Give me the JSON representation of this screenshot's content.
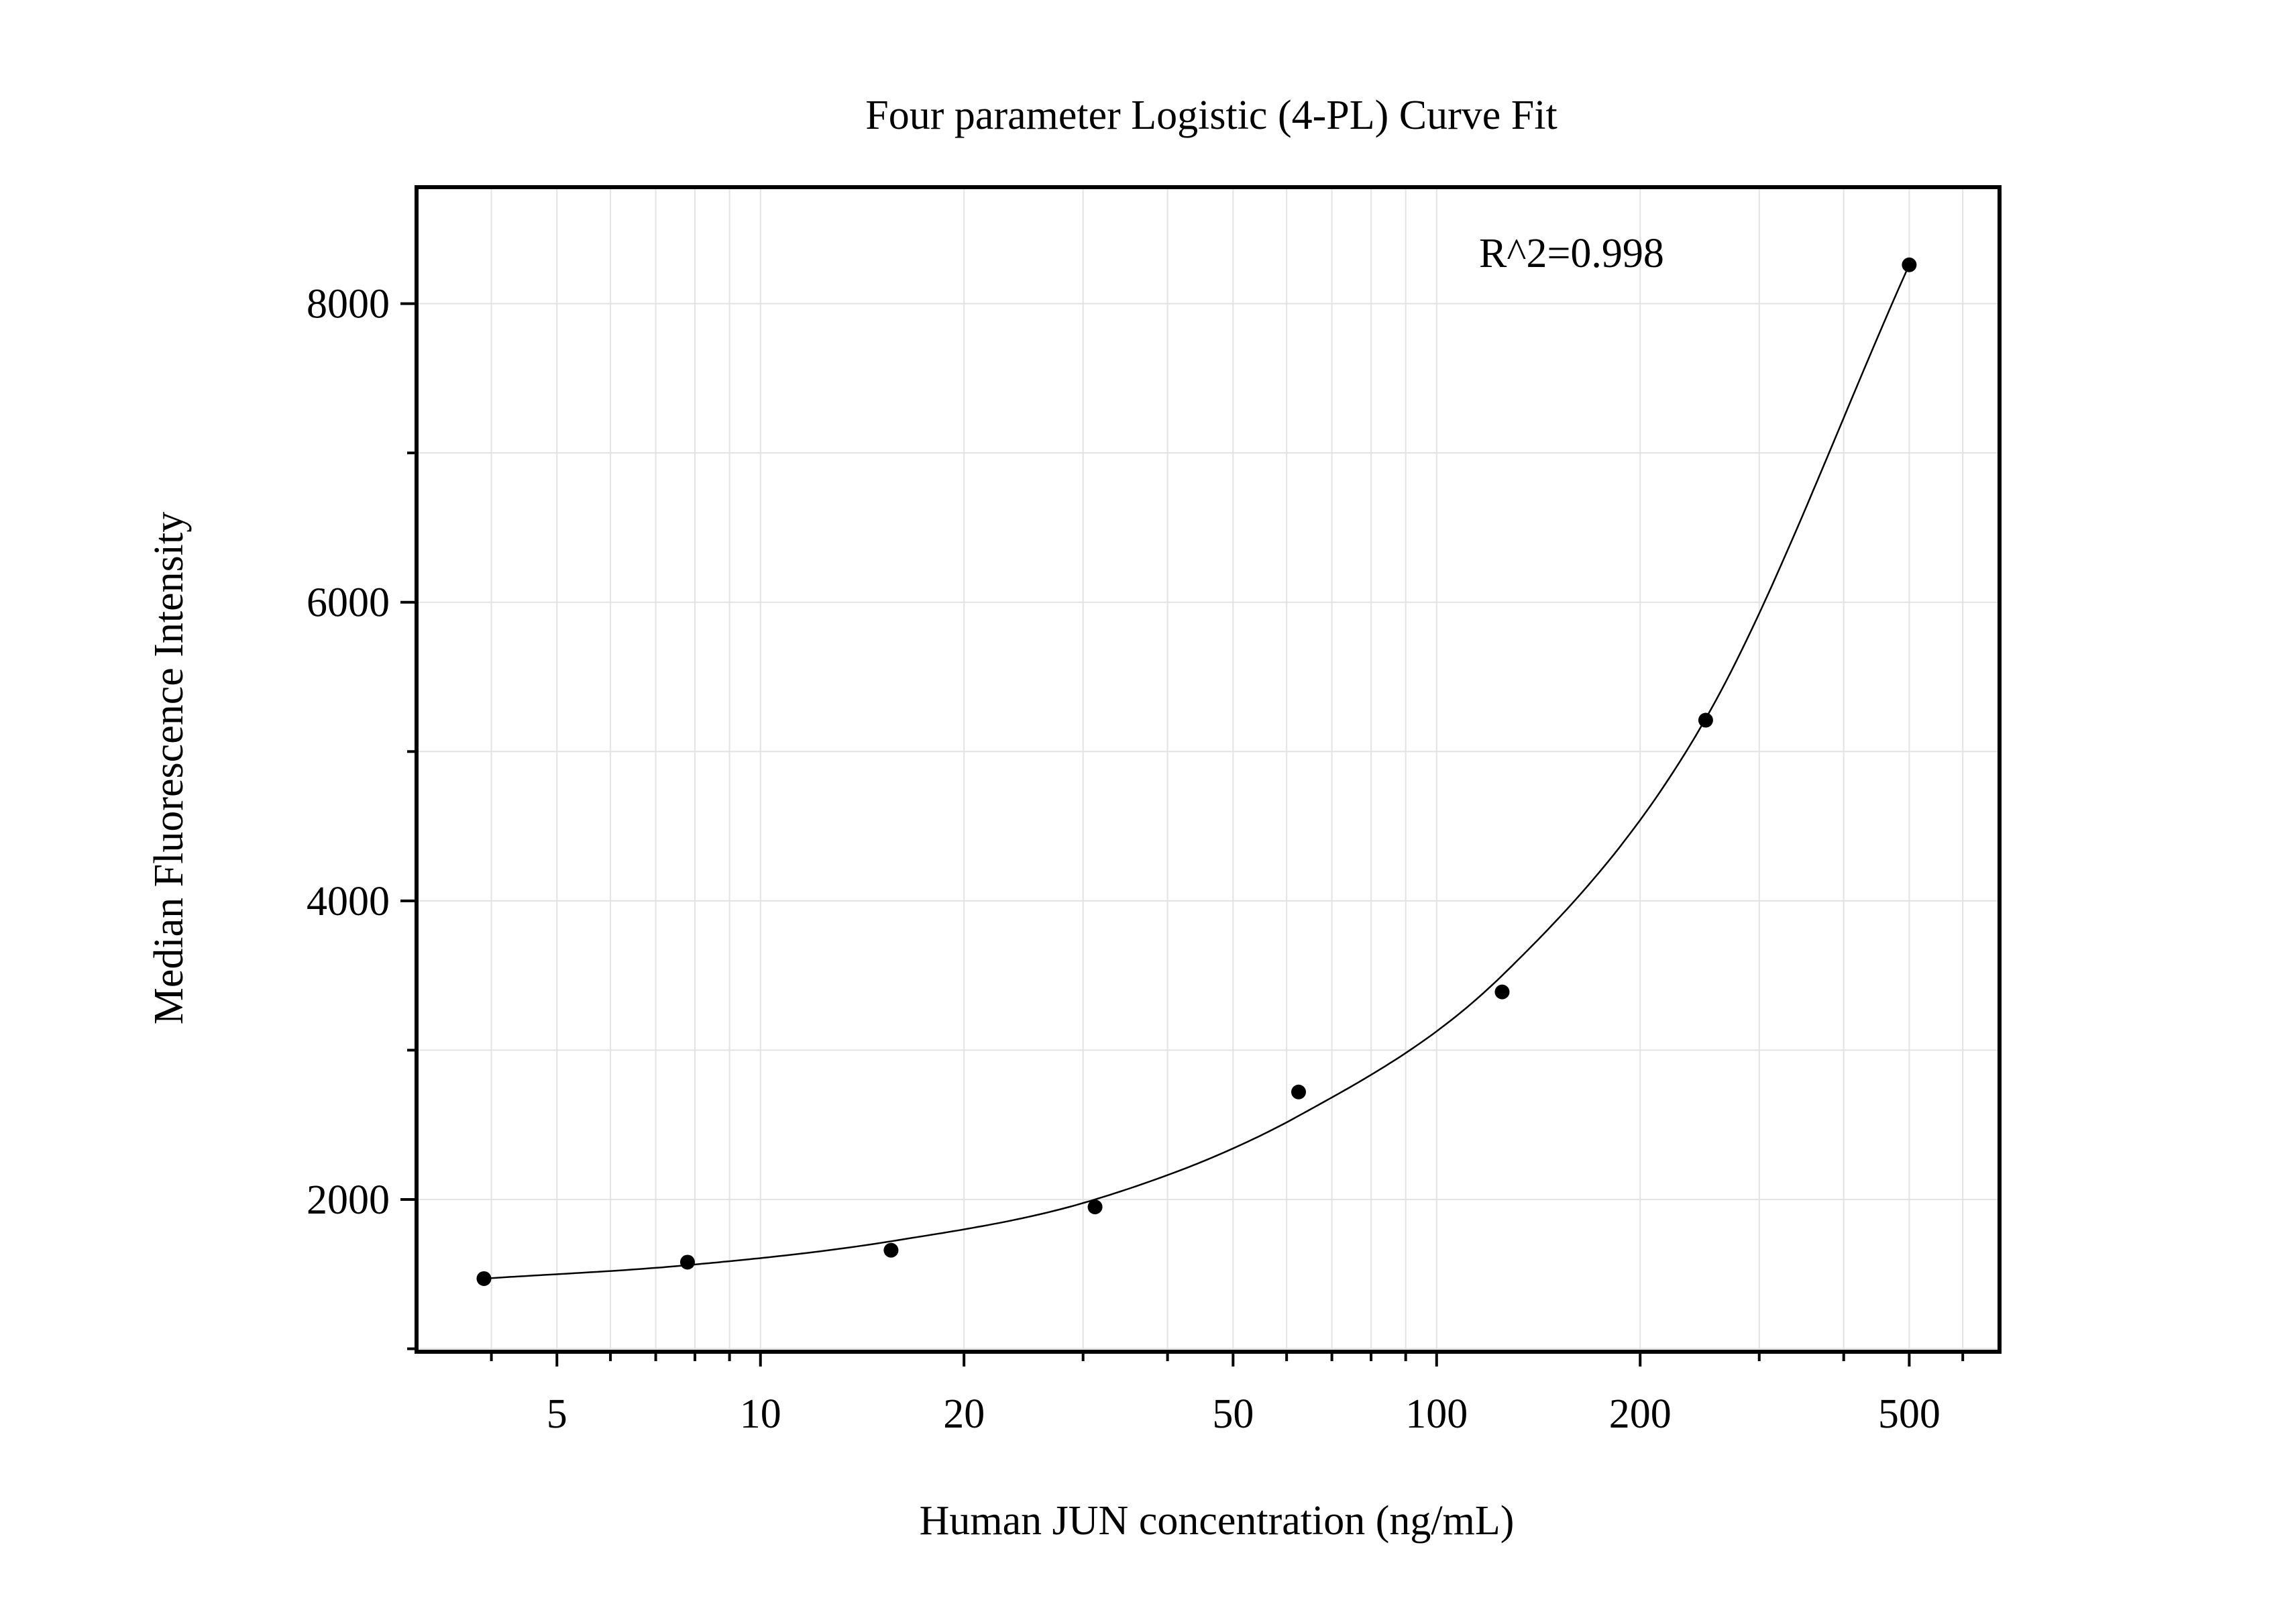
{
  "chart_data": {
    "type": "scatter",
    "title": "Four parameter Logistic (4-PL) Curve Fit",
    "xlabel": "Human JUN concentration (ng/mL)",
    "ylabel": "Median Fluorescence Intensity",
    "x_scale": "log",
    "xlim": [
      3.1,
      680
    ],
    "ylim": [
      980,
      8780
    ],
    "x_ticks": [
      5,
      10,
      20,
      50,
      100,
      200,
      500
    ],
    "x_tick_labels": [
      "5",
      "10",
      "20",
      "50",
      "100",
      "200",
      "500"
    ],
    "y_ticks": [
      2000,
      4000,
      6000,
      8000
    ],
    "y_tick_labels": [
      "2000",
      "4000",
      "6000",
      "8000"
    ],
    "y_minor_ticks": [
      1000,
      3000,
      5000,
      7000
    ],
    "grid": true,
    "annotation": "R^2=0.998",
    "series": [
      {
        "kind": "points",
        "x": [
          3.9,
          7.8,
          15.6,
          31.25,
          62.5,
          125,
          250,
          500
        ],
        "y": [
          1470,
          1580,
          1660,
          1950,
          2720,
          3390,
          5210,
          8260
        ]
      },
      {
        "kind": "fit",
        "x": [
          3.9,
          7.8,
          15.6,
          31.25,
          62.5,
          125,
          250,
          500
        ],
        "y": [
          1470,
          1560,
          1720,
          2000,
          2560,
          3500,
          5220,
          8260
        ]
      }
    ],
    "colors": {
      "points": "#000000",
      "fit": "#000000",
      "grid": "#e3e3e3",
      "frame": "#000000"
    }
  }
}
